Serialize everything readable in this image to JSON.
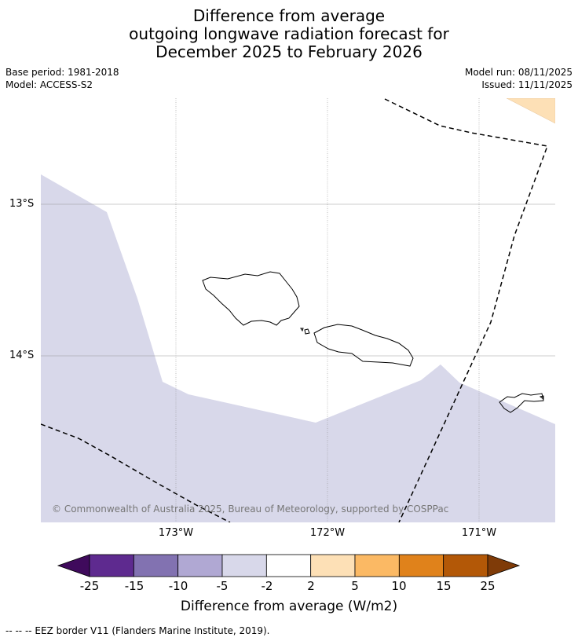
{
  "title": {
    "line1": "Difference from average",
    "line2": "outgoing longwave radiation forecast for",
    "line3": "December 2025 to February 2026"
  },
  "meta": {
    "base_period": "Base period: 1981-2018",
    "model": "Model: ACCESS-S2",
    "model_run": "Model run: 08/11/2025",
    "issued": "Issued: 11/11/2025"
  },
  "map": {
    "lon_labels": [
      "173°W",
      "172°W",
      "171°W"
    ],
    "lat_labels": [
      "13°S",
      "14°S"
    ],
    "copyright": "© Commonwealth of Australia 2025, Bureau of Meteorology, supported by COSPPac",
    "colors": {
      "neg2_to_neg5": "#d8d8ea",
      "pos2_to_pos5": "#fde0b6"
    }
  },
  "colorbar": {
    "tick_labels": [
      "-25",
      "-15",
      "-10",
      "-5",
      "-2",
      "2",
      "5",
      "10",
      "15",
      "25"
    ],
    "colors": [
      "#3f0a5c",
      "#5e2a8f",
      "#8272b1",
      "#b0a8d3",
      "#d8d8ea",
      "#ffffff",
      "#fde0b6",
      "#fbb964",
      "#e0821b",
      "#b35807",
      "#7f3b08"
    ],
    "title": "Difference from average (W/m2)"
  },
  "footnote": "--  --  -- EEZ border V11 (Flanders Marine Institute, 2019)."
}
